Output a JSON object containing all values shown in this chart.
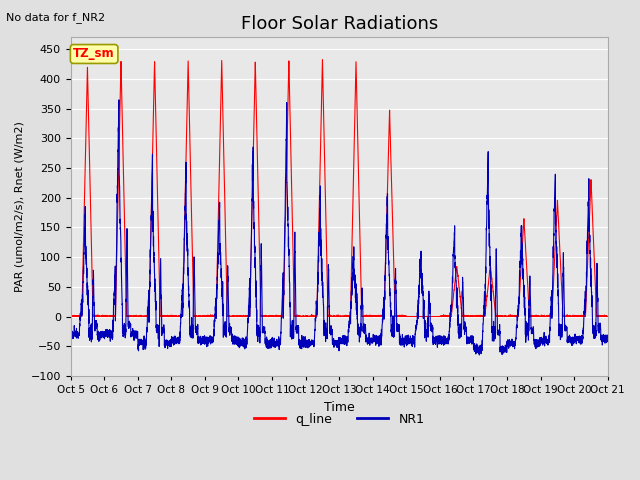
{
  "title": "Floor Solar Radiations",
  "subtitle": "No data for f_NR2",
  "xlabel": "Time",
  "ylabel": "PAR (umol/m2/s), Rnet (W/m2)",
  "ylim": [
    -100,
    470
  ],
  "yticks": [
    -100,
    -50,
    0,
    50,
    100,
    150,
    200,
    250,
    300,
    350,
    400,
    450
  ],
  "legend_label1": "q_line",
  "legend_label2": "NR1",
  "color1": "#FF0000",
  "color2": "#0000BB",
  "box_label": "TZ_sm",
  "box_facecolor": "#FFFFAA",
  "box_edgecolor": "#999900",
  "n_days": 16,
  "fig_bg": "#E0E0E0",
  "plot_bg": "#E8E8E8",
  "title_fontsize": 13,
  "q_peaks": [
    420,
    430,
    430,
    430,
    430,
    430,
    430,
    430,
    430,
    345,
    0,
    85,
    85,
    165,
    195,
    230
  ],
  "nr1_peaks": [
    175,
    370,
    260,
    255,
    200,
    290,
    355,
    210,
    110,
    200,
    108,
    150,
    285,
    165,
    250,
    225
  ],
  "nr1_nights": [
    -30,
    -30,
    -45,
    -40,
    -40,
    -45,
    -45,
    -45,
    -40,
    -40,
    -40,
    -40,
    -55,
    -45,
    -40,
    -38
  ],
  "pts_per_day": 288
}
